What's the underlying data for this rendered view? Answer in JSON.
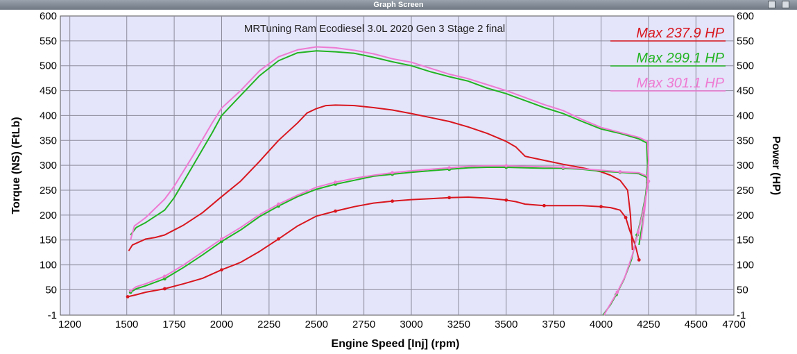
{
  "window": {
    "title": "Graph Screen"
  },
  "colors": {
    "plot_bg": "#e4e4fa",
    "grid": "#8c8c9c",
    "red": "#d8161e",
    "green": "#22b422",
    "pink": "#ee7ad2"
  },
  "chart_data": {
    "type": "line",
    "title": "MRTuning Ram Ecodiesel 3.0L 2020 Gen 3 Stage 2 final",
    "xlabel": "Engine Speed [Inj] (rpm)",
    "ylabel_left": "Torque (NS) (FtLb)",
    "ylabel_right": "Power (HP)",
    "xlim": [
      1150,
      4700
    ],
    "ylim": [
      -1,
      600
    ],
    "x_ticks": [
      1200,
      1500,
      1750,
      2000,
      2250,
      2500,
      2750,
      3000,
      3250,
      3500,
      3750,
      4000,
      4250,
      4500,
      4700
    ],
    "y_ticks": [
      -1,
      50,
      100,
      150,
      200,
      250,
      300,
      350,
      400,
      450,
      500,
      550,
      600
    ],
    "grid": true,
    "legend_position": "top-right",
    "legend": [
      {
        "text": "Max 237.9 HP",
        "color": "#d8161e"
      },
      {
        "text": "Max 299.1 HP",
        "color": "#22b422"
      },
      {
        "text": "Max 301.1 HP",
        "color": "#ee7ad2"
      }
    ],
    "series": [
      {
        "color": "#d8161e",
        "kind": "torque",
        "points": [
          [
            1510,
            128
          ],
          [
            1530,
            140
          ],
          [
            1600,
            152
          ],
          [
            1650,
            155
          ],
          [
            1700,
            160
          ],
          [
            1800,
            180
          ],
          [
            1900,
            205
          ],
          [
            2000,
            237
          ],
          [
            2100,
            268
          ],
          [
            2200,
            308
          ],
          [
            2300,
            350
          ],
          [
            2400,
            385
          ],
          [
            2450,
            405
          ],
          [
            2500,
            414
          ],
          [
            2550,
            420
          ],
          [
            2600,
            421
          ],
          [
            2700,
            420
          ],
          [
            2800,
            416
          ],
          [
            2900,
            411
          ],
          [
            3000,
            404
          ],
          [
            3100,
            396
          ],
          [
            3200,
            388
          ],
          [
            3300,
            377
          ],
          [
            3400,
            364
          ],
          [
            3500,
            348
          ],
          [
            3550,
            337
          ],
          [
            3600,
            318
          ],
          [
            3700,
            310
          ],
          [
            3800,
            302
          ],
          [
            3900,
            295
          ],
          [
            4000,
            287
          ],
          [
            4050,
            280
          ],
          [
            4100,
            270
          ],
          [
            4140,
            250
          ],
          [
            4155,
            200
          ],
          [
            4165,
            130
          ]
        ]
      },
      {
        "color": "#d8161e",
        "kind": "power",
        "points": [
          [
            1505,
            36
          ],
          [
            1550,
            40
          ],
          [
            1600,
            45
          ],
          [
            1700,
            52
          ],
          [
            1800,
            62
          ],
          [
            1900,
            73
          ],
          [
            2000,
            90
          ],
          [
            2100,
            105
          ],
          [
            2200,
            127
          ],
          [
            2300,
            152
          ],
          [
            2400,
            178
          ],
          [
            2500,
            198
          ],
          [
            2600,
            208
          ],
          [
            2700,
            217
          ],
          [
            2800,
            224
          ],
          [
            2900,
            228
          ],
          [
            3000,
            231
          ],
          [
            3100,
            233
          ],
          [
            3200,
            235
          ],
          [
            3300,
            236
          ],
          [
            3400,
            234
          ],
          [
            3500,
            230
          ],
          [
            3550,
            227
          ],
          [
            3600,
            222
          ],
          [
            3700,
            219
          ],
          [
            3800,
            219
          ],
          [
            3900,
            219
          ],
          [
            4000,
            217
          ],
          [
            4050,
            215
          ],
          [
            4100,
            210
          ],
          [
            4130,
            195
          ],
          [
            4150,
            170
          ],
          [
            4180,
            140
          ],
          [
            4200,
            110
          ]
        ]
      },
      {
        "color": "#22b422",
        "kind": "torque",
        "points": [
          [
            1520,
            160
          ],
          [
            1550,
            175
          ],
          [
            1600,
            185
          ],
          [
            1700,
            210
          ],
          [
            1750,
            235
          ],
          [
            1850,
            300
          ],
          [
            1950,
            365
          ],
          [
            2000,
            400
          ],
          [
            2100,
            440
          ],
          [
            2200,
            480
          ],
          [
            2300,
            510
          ],
          [
            2400,
            526
          ],
          [
            2500,
            530
          ],
          [
            2600,
            528
          ],
          [
            2700,
            525
          ],
          [
            2800,
            517
          ],
          [
            2900,
            508
          ],
          [
            3000,
            500
          ],
          [
            3100,
            488
          ],
          [
            3200,
            478
          ],
          [
            3300,
            469
          ],
          [
            3400,
            455
          ],
          [
            3500,
            444
          ],
          [
            3600,
            430
          ],
          [
            3700,
            416
          ],
          [
            3800,
            404
          ],
          [
            3900,
            388
          ],
          [
            4000,
            373
          ],
          [
            4100,
            364
          ],
          [
            4200,
            353
          ],
          [
            4240,
            345
          ],
          [
            4245,
            300
          ],
          [
            4240,
            260
          ],
          [
            4225,
            200
          ],
          [
            4200,
            140
          ]
        ]
      },
      {
        "color": "#22b422",
        "kind": "power",
        "points": [
          [
            1520,
            45
          ],
          [
            1550,
            52
          ],
          [
            1600,
            58
          ],
          [
            1700,
            72
          ],
          [
            1800,
            95
          ],
          [
            1900,
            120
          ],
          [
            2000,
            147
          ],
          [
            2100,
            170
          ],
          [
            2200,
            197
          ],
          [
            2300,
            218
          ],
          [
            2400,
            237
          ],
          [
            2500,
            252
          ],
          [
            2600,
            262
          ],
          [
            2700,
            270
          ],
          [
            2800,
            278
          ],
          [
            2900,
            282
          ],
          [
            3000,
            286
          ],
          [
            3100,
            289
          ],
          [
            3200,
            292
          ],
          [
            3300,
            295
          ],
          [
            3400,
            296
          ],
          [
            3500,
            296
          ],
          [
            3600,
            295
          ],
          [
            3700,
            294
          ],
          [
            3800,
            294
          ],
          [
            3900,
            292
          ],
          [
            4000,
            288
          ],
          [
            4100,
            286
          ],
          [
            4200,
            283
          ],
          [
            4240,
            276
          ],
          [
            4245,
            265
          ],
          [
            4235,
            240
          ],
          [
            4215,
            200
          ],
          [
            4190,
            160
          ],
          [
            4160,
            110
          ],
          [
            4120,
            70
          ],
          [
            4080,
            40
          ],
          [
            4050,
            20
          ],
          [
            4010,
            -1
          ]
        ]
      },
      {
        "color": "#ee7ad2",
        "kind": "torque",
        "points": [
          [
            1520,
            150
          ],
          [
            1540,
            178
          ],
          [
            1600,
            195
          ],
          [
            1700,
            232
          ],
          [
            1750,
            258
          ],
          [
            1850,
            320
          ],
          [
            1950,
            385
          ],
          [
            2000,
            415
          ],
          [
            2100,
            450
          ],
          [
            2200,
            490
          ],
          [
            2300,
            518
          ],
          [
            2400,
            532
          ],
          [
            2500,
            538
          ],
          [
            2600,
            536
          ],
          [
            2700,
            531
          ],
          [
            2800,
            524
          ],
          [
            2900,
            514
          ],
          [
            3000,
            507
          ],
          [
            3100,
            495
          ],
          [
            3200,
            483
          ],
          [
            3300,
            474
          ],
          [
            3400,
            462
          ],
          [
            3500,
            450
          ],
          [
            3600,
            436
          ],
          [
            3700,
            422
          ],
          [
            3800,
            410
          ],
          [
            3900,
            392
          ],
          [
            4000,
            376
          ],
          [
            4100,
            366
          ],
          [
            4200,
            356
          ],
          [
            4245,
            348
          ],
          [
            4250,
            310
          ],
          [
            4245,
            270
          ],
          [
            4230,
            210
          ],
          [
            4210,
            150
          ]
        ]
      },
      {
        "color": "#ee7ad2",
        "kind": "power",
        "points": [
          [
            1520,
            48
          ],
          [
            1550,
            56
          ],
          [
            1600,
            62
          ],
          [
            1700,
            77
          ],
          [
            1800,
            100
          ],
          [
            1900,
            126
          ],
          [
            2000,
            152
          ],
          [
            2100,
            175
          ],
          [
            2200,
            201
          ],
          [
            2300,
            222
          ],
          [
            2400,
            240
          ],
          [
            2500,
            256
          ],
          [
            2600,
            266
          ],
          [
            2700,
            274
          ],
          [
            2800,
            280
          ],
          [
            2900,
            285
          ],
          [
            3000,
            289
          ],
          [
            3100,
            292
          ],
          [
            3200,
            295
          ],
          [
            3300,
            298
          ],
          [
            3400,
            299
          ],
          [
            3500,
            299
          ],
          [
            3600,
            298
          ],
          [
            3700,
            297
          ],
          [
            3800,
            296
          ],
          [
            3900,
            293
          ],
          [
            4000,
            290
          ],
          [
            4100,
            287
          ],
          [
            4200,
            285
          ],
          [
            4245,
            278
          ],
          [
            4250,
            268
          ],
          [
            4240,
            245
          ],
          [
            4220,
            205
          ],
          [
            4195,
            165
          ],
          [
            4165,
            120
          ],
          [
            4125,
            75
          ],
          [
            4085,
            45
          ],
          [
            4050,
            22
          ],
          [
            4015,
            -1
          ]
        ]
      }
    ]
  }
}
